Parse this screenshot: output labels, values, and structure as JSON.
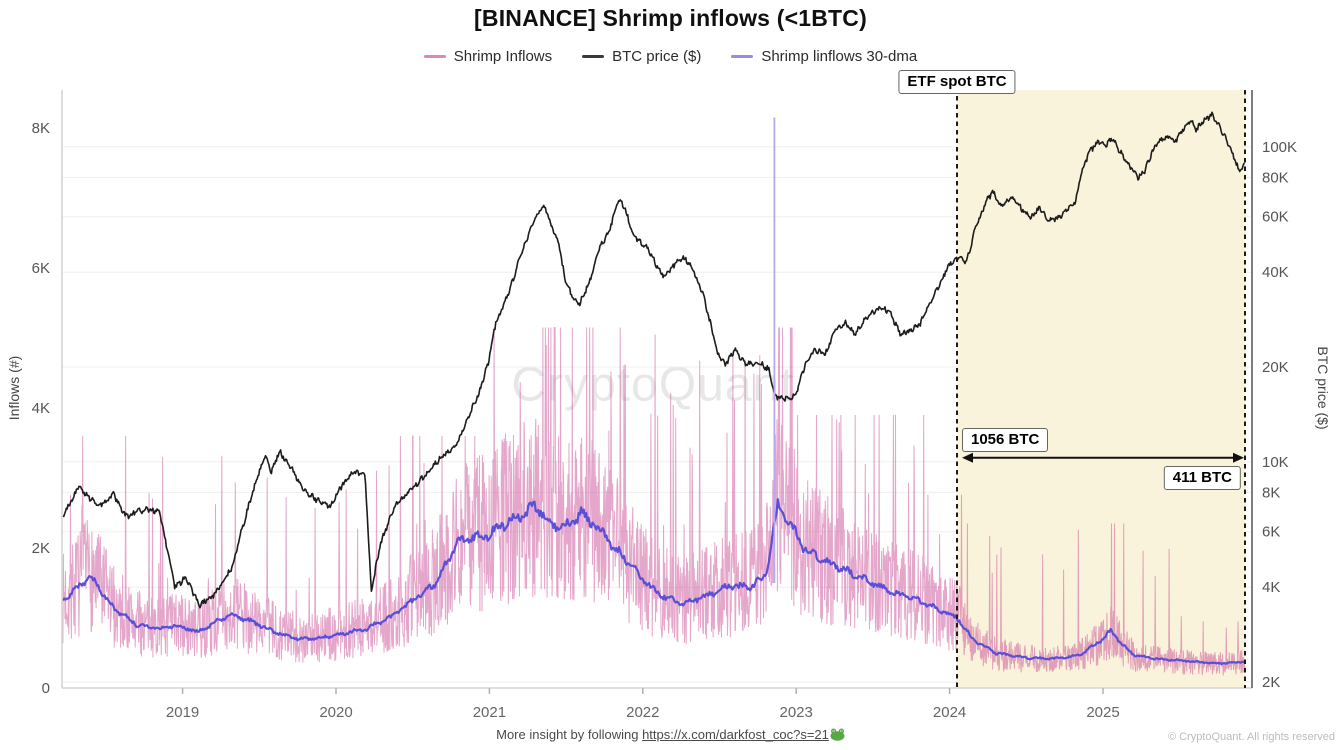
{
  "chart_data": {
    "type": "line",
    "title": "[BINANCE] Shrimp inflows (<1BTC)",
    "watermark": "CryptoQuant",
    "x_range": [
      2018.22,
      2025.926
    ],
    "x_axis": {
      "ticks": [
        "2019",
        "2020",
        "2021",
        "2022",
        "2023",
        "2024",
        "2025"
      ],
      "tick_values": [
        2019,
        2020,
        2021,
        2022,
        2023,
        2024,
        2025
      ]
    },
    "left_axis": {
      "title": "Inflows (#)",
      "scale": "linear",
      "range": [
        0,
        8540
      ],
      "ticks": [
        "0",
        "2K",
        "4K",
        "6K",
        "8K"
      ],
      "tick_values": [
        0,
        2000,
        4000,
        6000,
        8000
      ]
    },
    "right_axis": {
      "title": "BTC price ($)",
      "scale": "log",
      "range": [
        2000,
        151000
      ],
      "ticks": [
        "2K",
        "4K",
        "6K",
        "8K",
        "10K",
        "20K",
        "40K",
        "60K",
        "80K",
        "100K"
      ],
      "tick_values": [
        2000,
        4000,
        6000,
        8000,
        10000,
        20000,
        40000,
        60000,
        80000,
        100000
      ]
    },
    "legend": [
      {
        "label": "Shrimp Inflows",
        "color": "#df86b8"
      },
      {
        "label": "BTC price ($)",
        "color": "#3a3a3a"
      },
      {
        "label": "Shrimp linflows 30-dma",
        "color": "#9489ec"
      }
    ],
    "series": [
      {
        "name": "Shrimp Inflows",
        "axis": "left",
        "style": "noisy-line",
        "color": "rgba(201,77,150,0.5)",
        "base": "30dma",
        "noise": {
          "seed": 7,
          "step_days": 1,
          "lo": 0.5,
          "span": 1.05,
          "burst_prob": 0.045,
          "burst_lo": 1.7,
          "burst_span": 2.0,
          "floor": 70,
          "post_etf": {
            "lo": 0.5,
            "span": 0.95,
            "burst_prob": 0.02,
            "burst_lo": 2.3,
            "burst_span": 2.8
          },
          "caps": [
            [
              2021,
              3600
            ],
            [
              2023,
              5150
            ],
            [
              2024.1,
              3900
            ],
            [
              2026,
              2350
            ]
          ]
        },
        "spikes": [
          [
            2018.87,
            3300
          ],
          [
            2021.37,
            4900
          ],
          [
            2022.08,
            5050
          ],
          [
            2023.28,
            3800
          ],
          [
            2023.45,
            3200
          ],
          [
            2024.84,
            2260
          ],
          [
            2025.34,
            1600
          ],
          [
            2025.88,
            950
          ]
        ],
        "event_spike": {
          "t": 2022.858,
          "value": 8150,
          "color": "#b7a8ef"
        }
      },
      {
        "name": "BTC price ($)",
        "axis": "right",
        "color": "#1c1c1c",
        "points": [
          [
            2018.22,
            6700
          ],
          [
            2018.32,
            8300
          ],
          [
            2018.46,
            7200
          ],
          [
            2018.55,
            7900
          ],
          [
            2018.63,
            6700
          ],
          [
            2018.76,
            7100
          ],
          [
            2018.85,
            6900
          ],
          [
            2018.91,
            5000
          ],
          [
            2018.95,
            4000
          ],
          [
            2019.02,
            4300
          ],
          [
            2019.11,
            3500
          ],
          [
            2019.21,
            3800
          ],
          [
            2019.32,
            4600
          ],
          [
            2019.41,
            6700
          ],
          [
            2019.49,
            9000
          ],
          [
            2019.54,
            10400
          ],
          [
            2019.58,
            9300
          ],
          [
            2019.63,
            10800
          ],
          [
            2019.7,
            9700
          ],
          [
            2019.79,
            8100
          ],
          [
            2019.89,
            7500
          ],
          [
            2019.96,
            7200
          ],
          [
            2020.03,
            8300
          ],
          [
            2020.12,
            9300
          ],
          [
            2020.19,
            9000
          ],
          [
            2020.23,
            3900
          ],
          [
            2020.29,
            5500
          ],
          [
            2020.38,
            7200
          ],
          [
            2020.48,
            8100
          ],
          [
            2020.58,
            9000
          ],
          [
            2020.68,
            10300
          ],
          [
            2020.78,
            11200
          ],
          [
            2020.84,
            13100
          ],
          [
            2020.93,
            16400
          ],
          [
            2020.99,
            20400
          ],
          [
            2021.04,
            27500
          ],
          [
            2021.1,
            31900
          ],
          [
            2021.15,
            37200
          ],
          [
            2021.2,
            44700
          ],
          [
            2021.26,
            53700
          ],
          [
            2021.32,
            62200
          ],
          [
            2021.36,
            64500
          ],
          [
            2021.41,
            55600
          ],
          [
            2021.45,
            49800
          ],
          [
            2021.49,
            38500
          ],
          [
            2021.54,
            33200
          ],
          [
            2021.59,
            31900
          ],
          [
            2021.65,
            37200
          ],
          [
            2021.72,
            48000
          ],
          [
            2021.78,
            53700
          ],
          [
            2021.84,
            68500
          ],
          [
            2021.88,
            64500
          ],
          [
            2021.93,
            53700
          ],
          [
            2021.98,
            49800
          ],
          [
            2022.03,
            48000
          ],
          [
            2022.08,
            43000
          ],
          [
            2022.14,
            38500
          ],
          [
            2022.19,
            41500
          ],
          [
            2022.26,
            44700
          ],
          [
            2022.32,
            41500
          ],
          [
            2022.39,
            34400
          ],
          [
            2022.44,
            27500
          ],
          [
            2022.49,
            21900
          ],
          [
            2022.54,
            20400
          ],
          [
            2022.6,
            22700
          ],
          [
            2022.67,
            20400
          ],
          [
            2022.75,
            20700
          ],
          [
            2022.82,
            19700
          ],
          [
            2022.86,
            16100
          ],
          [
            2022.93,
            15900
          ],
          [
            2022.99,
            16100
          ],
          [
            2023.06,
            20400
          ],
          [
            2023.12,
            22700
          ],
          [
            2023.19,
            21900
          ],
          [
            2023.25,
            26100
          ],
          [
            2023.32,
            27500
          ],
          [
            2023.38,
            25400
          ],
          [
            2023.43,
            27500
          ],
          [
            2023.49,
            29800
          ],
          [
            2023.56,
            30900
          ],
          [
            2023.61,
            29800
          ],
          [
            2023.68,
            25400
          ],
          [
            2023.74,
            26100
          ],
          [
            2023.81,
            27500
          ],
          [
            2023.87,
            31900
          ],
          [
            2023.94,
            37200
          ],
          [
            2024.0,
            42500
          ],
          [
            2024.06,
            44700
          ],
          [
            2024.11,
            43000
          ],
          [
            2024.17,
            55600
          ],
          [
            2024.24,
            67000
          ],
          [
            2024.28,
            72300
          ],
          [
            2024.33,
            64500
          ],
          [
            2024.4,
            69600
          ],
          [
            2024.46,
            64500
          ],
          [
            2024.53,
            59500
          ],
          [
            2024.59,
            64500
          ],
          [
            2024.64,
            58300
          ],
          [
            2024.71,
            59500
          ],
          [
            2024.75,
            62200
          ],
          [
            2024.82,
            67000
          ],
          [
            2024.86,
            83300
          ],
          [
            2024.91,
            96500
          ],
          [
            2024.97,
            103900
          ],
          [
            2025.01,
            100200
          ],
          [
            2025.06,
            106300
          ],
          [
            2025.11,
            96500
          ],
          [
            2025.18,
            86400
          ],
          [
            2025.23,
            80000
          ],
          [
            2025.27,
            83300
          ],
          [
            2025.32,
            96500
          ],
          [
            2025.37,
            103900
          ],
          [
            2025.42,
            107900
          ],
          [
            2025.47,
            103900
          ],
          [
            2025.51,
            112000
          ],
          [
            2025.57,
            120700
          ],
          [
            2025.61,
            113600
          ],
          [
            2025.66,
            122500
          ],
          [
            2025.71,
            126000
          ],
          [
            2025.76,
            116000
          ],
          [
            2025.81,
            103900
          ],
          [
            2025.85,
            93500
          ],
          [
            2025.89,
            83300
          ],
          [
            2025.926,
            89000
          ]
        ]
      },
      {
        "name": "Shrimp linflows 30-dma",
        "axis": "left",
        "color": "#5a4fd8",
        "points": [
          [
            2018.22,
            1250
          ],
          [
            2018.4,
            1600
          ],
          [
            2018.55,
            1150
          ],
          [
            2018.7,
            900
          ],
          [
            2018.85,
            850
          ],
          [
            2018.95,
            900
          ],
          [
            2019.1,
            800
          ],
          [
            2019.3,
            1050
          ],
          [
            2019.45,
            950
          ],
          [
            2019.6,
            800
          ],
          [
            2019.75,
            700
          ],
          [
            2019.9,
            720
          ],
          [
            2020.05,
            780
          ],
          [
            2020.2,
            850
          ],
          [
            2020.35,
            1000
          ],
          [
            2020.5,
            1250
          ],
          [
            2020.65,
            1500
          ],
          [
            2020.8,
            2100
          ],
          [
            2020.9,
            2150
          ],
          [
            2021.0,
            2200
          ],
          [
            2021.1,
            2350
          ],
          [
            2021.2,
            2450
          ],
          [
            2021.3,
            2600
          ],
          [
            2021.4,
            2350
          ],
          [
            2021.5,
            2300
          ],
          [
            2021.6,
            2500
          ],
          [
            2021.7,
            2300
          ],
          [
            2021.8,
            2050
          ],
          [
            2021.9,
            1800
          ],
          [
            2022.0,
            1550
          ],
          [
            2022.1,
            1350
          ],
          [
            2022.25,
            1200
          ],
          [
            2022.4,
            1300
          ],
          [
            2022.55,
            1450
          ],
          [
            2022.7,
            1450
          ],
          [
            2022.8,
            1600
          ],
          [
            2022.88,
            2600
          ],
          [
            2022.95,
            2400
          ],
          [
            2023.05,
            2000
          ],
          [
            2023.2,
            1800
          ],
          [
            2023.35,
            1650
          ],
          [
            2023.5,
            1500
          ],
          [
            2023.65,
            1350
          ],
          [
            2023.8,
            1250
          ],
          [
            2023.95,
            1100
          ],
          [
            2024.05,
            1000
          ],
          [
            2024.15,
            700
          ],
          [
            2024.3,
            500
          ],
          [
            2024.5,
            430
          ],
          [
            2024.7,
            420
          ],
          [
            2024.85,
            470
          ],
          [
            2025.0,
            700
          ],
          [
            2025.05,
            820
          ],
          [
            2025.12,
            640
          ],
          [
            2025.2,
            470
          ],
          [
            2025.3,
            430
          ],
          [
            2025.45,
            400
          ],
          [
            2025.6,
            375
          ],
          [
            2025.75,
            350
          ],
          [
            2025.926,
            380
          ]
        ]
      }
    ],
    "annotations": {
      "etf_label": "ETF spot BTC",
      "etf_time": 2024.048,
      "shaded_region": {
        "from": 2024.048,
        "to": 2025.926,
        "color": "#faf3db"
      },
      "arrow": {
        "from": 2024.048,
        "to": 2025.926,
        "price_level": 10300,
        "left_label": "1056 BTC",
        "right_label": "411 BTC"
      }
    }
  },
  "footer": {
    "prefix": "More insight by following ",
    "link": "https://x.com/darkfost_coc?s=21",
    "emoji": "frog"
  },
  "copyright": "© CryptoQuant. All rights reserved"
}
